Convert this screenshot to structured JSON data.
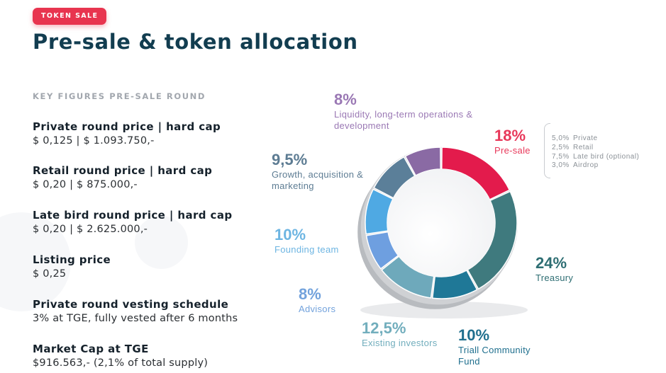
{
  "badge": "TOKEN SALE",
  "title": "Pre-sale & token allocation",
  "key_figures": {
    "heading": "KEY FIGURES PRE-SALE ROUND",
    "items": [
      {
        "label": "Private round price | hard cap",
        "value": "$ 0,125 | $ 1.093.750,-"
      },
      {
        "label": "Retail round price | hard cap",
        "value": "$ 0,20 | $ 875.000,-"
      },
      {
        "label": "Late bird round price | hard cap",
        "value": "$ 0,20 | $ 2.625.000,-"
      },
      {
        "label": "Listing price",
        "value": "$ 0,25"
      },
      {
        "label": "Private round vesting schedule",
        "value": "3% at TGE, fully vested after 6 months"
      },
      {
        "label": "Market Cap at TGE",
        "value": "$916.563,- (2,1% of total supply)"
      }
    ]
  },
  "chart_data": {
    "type": "pie",
    "style": "donut",
    "segments": [
      {
        "label": "Pre-sale",
        "pct_text": "18%",
        "value": 18,
        "color": "#e31b4c",
        "text_color": "#e8385a"
      },
      {
        "label": "Treasury",
        "pct_text": "24%",
        "value": 24,
        "color": "#3f7a7e",
        "text_color": "#2e6e73"
      },
      {
        "label": "Triall Community Fund",
        "pct_text": "10%",
        "value": 10,
        "color": "#1f7897",
        "text_color": "#1f6f8e"
      },
      {
        "label": "Existing investors",
        "pct_text": "12,5%",
        "value": 12.5,
        "color": "#6ea9bb",
        "text_color": "#72aebd"
      },
      {
        "label": "Advisors",
        "pct_text": "8%",
        "value": 8,
        "color": "#6e9fe0",
        "text_color": "#72a2dc"
      },
      {
        "label": "Founding team",
        "pct_text": "10%",
        "value": 10,
        "color": "#4fa9e3",
        "text_color": "#6db5e2"
      },
      {
        "label": "Growth, acquisition & marketing",
        "pct_text": "9,5%",
        "value": 9.5,
        "color": "#5b7f99",
        "text_color": "#5d7c93"
      },
      {
        "label": "Liquidity, long-term operations & development",
        "pct_text": "8%",
        "value": 8,
        "color": "#8a6aa4",
        "text_color": "#9a78b4"
      }
    ],
    "presale_breakdown": [
      {
        "pct": "5,0%",
        "label": "Private"
      },
      {
        "pct": "2,5%",
        "label": "Retail"
      },
      {
        "pct": "7,5%",
        "label": "Late bird (optional)"
      },
      {
        "pct": "3,0%",
        "label": "Airdrop"
      }
    ]
  }
}
